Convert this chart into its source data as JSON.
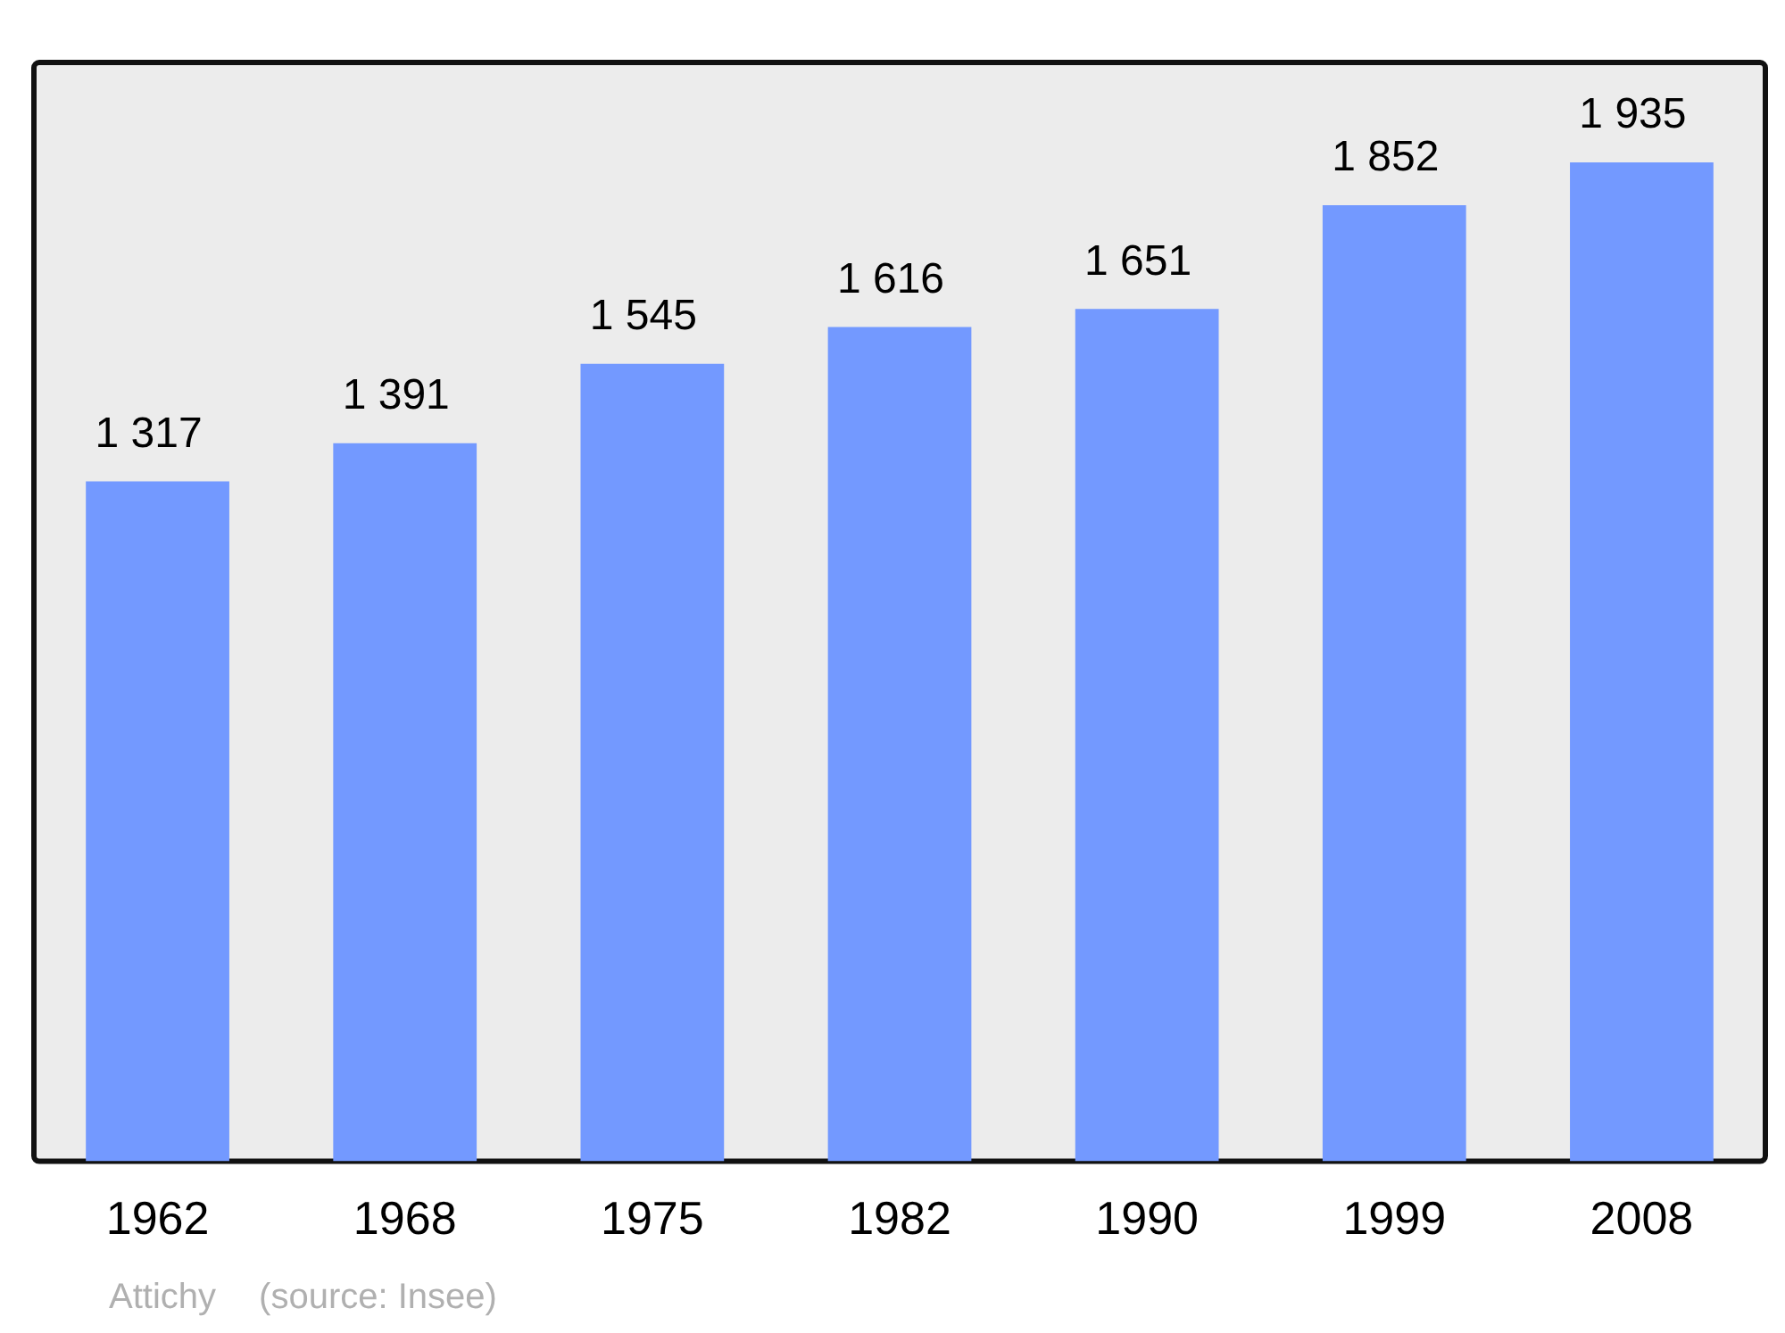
{
  "chart_data": {
    "type": "bar",
    "categories": [
      "1962",
      "1968",
      "1975",
      "1982",
      "1990",
      "1999",
      "2008"
    ],
    "values": [
      1317,
      1391,
      1545,
      1616,
      1651,
      1852,
      1935
    ],
    "value_labels": [
      "1 317",
      "1 391",
      "1 545",
      "1 616",
      "1 651",
      "1 852",
      "1 935"
    ],
    "color": "#7399ff",
    "relative": false,
    "grid": false,
    "legend": false,
    "annotations": [
      "Attichy",
      "(source: Insee)"
    ]
  }
}
